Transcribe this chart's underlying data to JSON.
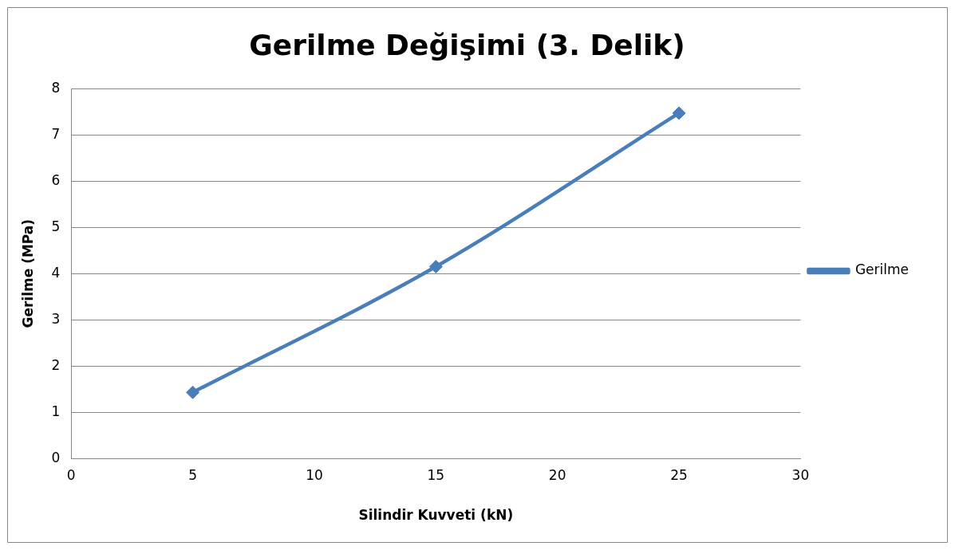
{
  "chart_data": {
    "type": "line",
    "title": "Gerilme Değişimi (3. Delik)",
    "xlabel": "Silindir Kuvveti (kN)",
    "ylabel": "Gerilme (MPa)",
    "x": [
      5,
      15,
      25
    ],
    "series": [
      {
        "name": "Gerilme",
        "color": "#4a7ebb",
        "values": [
          1.43,
          4.15,
          7.47
        ]
      }
    ],
    "xlim": [
      0,
      30
    ],
    "xticks": [
      0,
      5,
      10,
      15,
      20,
      25,
      30
    ],
    "ylim": [
      0,
      8
    ],
    "yticks": [
      0,
      1,
      2,
      3,
      4,
      5,
      6,
      7,
      8
    ],
    "grid": "y",
    "legend": "right",
    "marker": "diamond",
    "line_style": "solid"
  }
}
